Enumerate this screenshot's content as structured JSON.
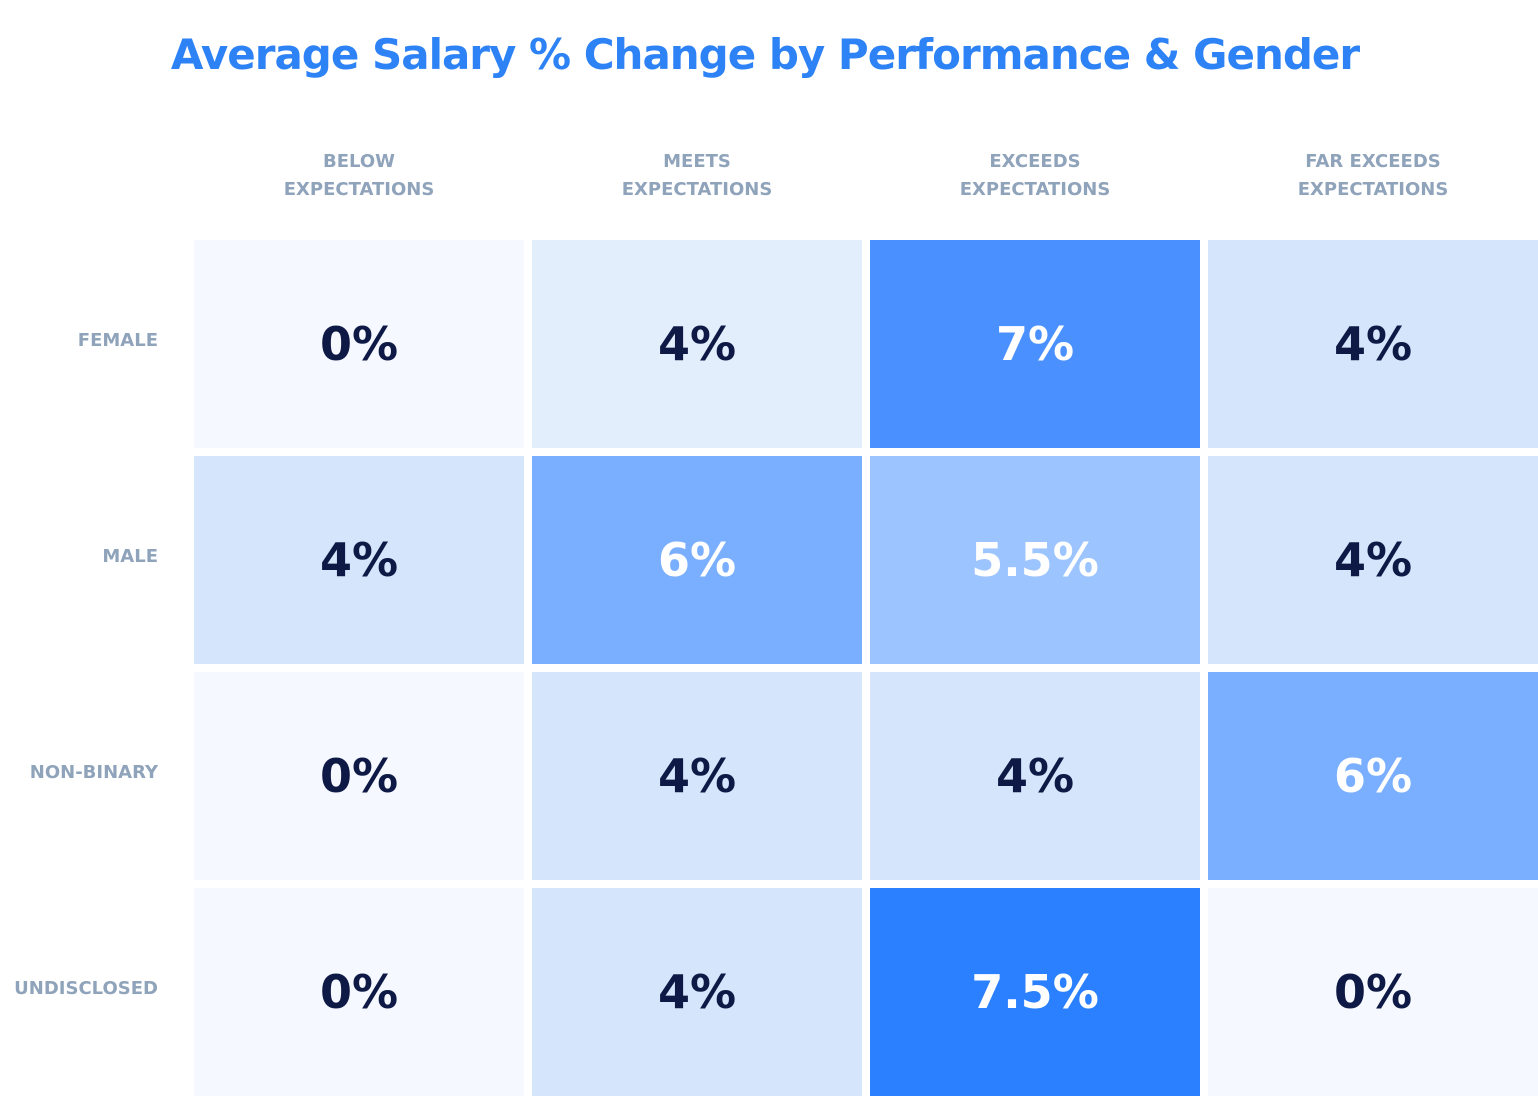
{
  "chart_data": {
    "type": "heatmap",
    "title": "Average Salary % Change by Performance & Gender",
    "x_categories": [
      "BELOW EXPECTATIONS",
      "MEETS EXPECTATIONS",
      "EXCEEDS EXPECTATIONS",
      "FAR EXCEEDS EXPECTATIONS"
    ],
    "y_categories": [
      "FEMALE",
      "MALE",
      "NON-BINARY",
      "UNDISCLOSED"
    ],
    "values": [
      [
        0,
        4,
        7,
        4
      ],
      [
        4,
        6,
        5.5,
        4
      ],
      [
        0,
        4,
        4,
        6
      ],
      [
        0,
        4,
        7.5,
        0
      ]
    ],
    "value_labels": [
      [
        "0%",
        "4%",
        "7%",
        "4%"
      ],
      [
        "4%",
        "6%",
        "5.5%",
        "4%"
      ],
      [
        "0%",
        "4%",
        "4%",
        "6%"
      ],
      [
        "0%",
        "4%",
        "7.5%",
        "0%"
      ]
    ],
    "colors": [
      [
        "#f5f8fe",
        "#e3eefd",
        "#4a91ff",
        "#d4e5fc"
      ],
      [
        "#d4e5fc",
        "#7aafff",
        "#9cc4ff",
        "#d4e5fc"
      ],
      [
        "#f5f8fe",
        "#d4e5fc",
        "#d4e5fc",
        "#7aafff"
      ],
      [
        "#f5f8fe",
        "#d4e5fc",
        "#2a80ff",
        "#f5f8fe"
      ]
    ]
  }
}
